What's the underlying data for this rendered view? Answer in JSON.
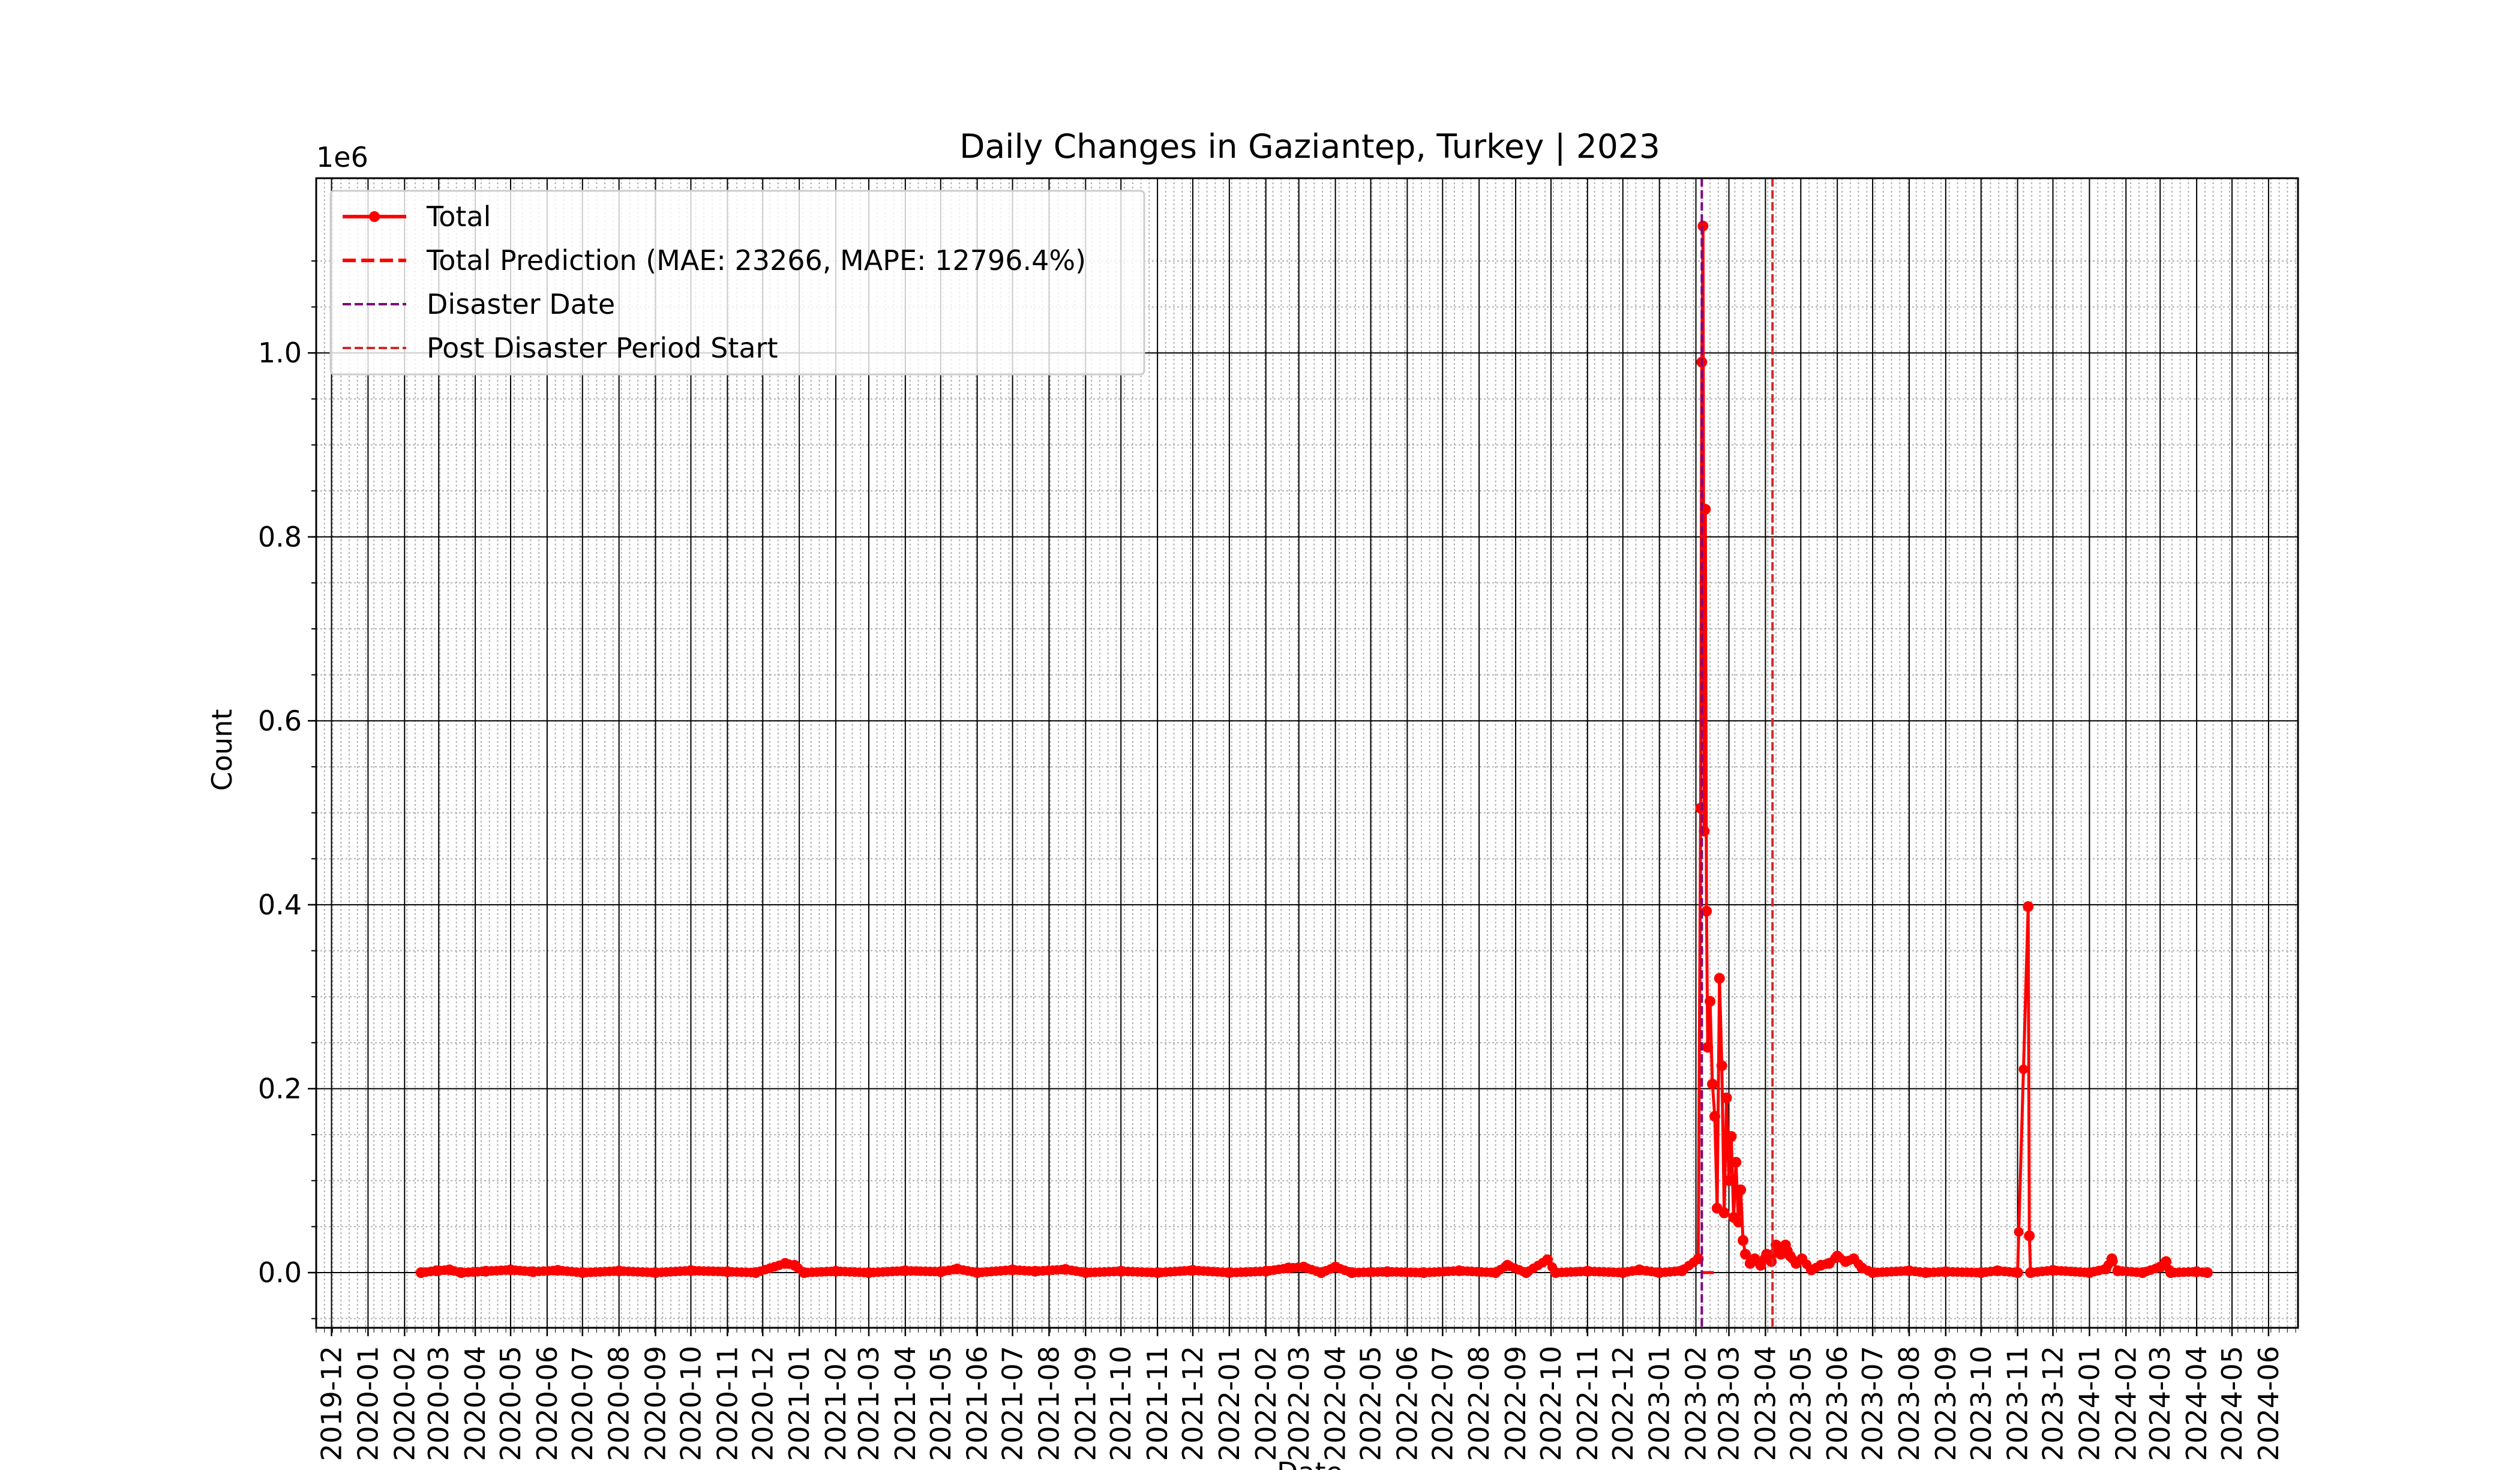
{
  "chart_data": {
    "type": "line",
    "title": "Daily Changes in Gaziantep, Turkey | 2023",
    "xlabel": "Date",
    "ylabel": "Count",
    "y_offset_label": "1e6",
    "xlim": [
      "2019-11-18",
      "2024-06-26"
    ],
    "ylim": [
      -60000,
      1190000
    ],
    "x_ticks": [
      "2019-12",
      "2020-01",
      "2020-02",
      "2020-03",
      "2020-04",
      "2020-05",
      "2020-06",
      "2020-07",
      "2020-08",
      "2020-09",
      "2020-10",
      "2020-11",
      "2020-12",
      "2021-01",
      "2021-02",
      "2021-03",
      "2021-04",
      "2021-05",
      "2021-06",
      "2021-07",
      "2021-08",
      "2021-09",
      "2021-10",
      "2021-11",
      "2021-12",
      "2022-01",
      "2022-02",
      "2022-03",
      "2022-04",
      "2022-05",
      "2022-06",
      "2022-07",
      "2022-08",
      "2022-09",
      "2022-10",
      "2022-11",
      "2022-12",
      "2023-01",
      "2023-02",
      "2023-03",
      "2023-04",
      "2023-05",
      "2023-06",
      "2023-07",
      "2023-08",
      "2023-09",
      "2023-10",
      "2023-11",
      "2023-12",
      "2024-01",
      "2024-02",
      "2024-03",
      "2024-04",
      "2024-05",
      "2024-06"
    ],
    "y_ticks": [
      0.0,
      0.2,
      0.4,
      0.6,
      0.8,
      1.0
    ],
    "grid": "major and minor",
    "legend_location": "upper left",
    "legend": [
      {
        "label": "Total",
        "color": "#ff0000",
        "style": "solid-marker"
      },
      {
        "label": "Total Prediction (MAE: 23266, MAPE: 12796.4%)",
        "color": "#ff0000",
        "style": "dashed"
      },
      {
        "label": "Disaster Date",
        "color": "#800080",
        "style": "dashed"
      },
      {
        "label": "Post Disaster Period Start",
        "color": "#d62728",
        "style": "dashed"
      }
    ],
    "vlines": [
      {
        "name": "Disaster Date",
        "date": "2023-02-06",
        "color": "#800080"
      },
      {
        "name": "Post Disaster Period Start",
        "date": "2023-04-07",
        "color": "#d62728"
      }
    ],
    "series": [
      {
        "name": "Total",
        "color": "#ff0000",
        "points": [
          [
            "2020-02-15",
            0
          ],
          [
            "2020-02-28",
            2000
          ],
          [
            "2020-03-10",
            3000
          ],
          [
            "2020-03-20",
            0
          ],
          [
            "2020-04-10",
            1500
          ],
          [
            "2020-05-01",
            3000
          ],
          [
            "2020-05-20",
            1000
          ],
          [
            "2020-06-10",
            2500
          ],
          [
            "2020-07-01",
            0
          ],
          [
            "2020-08-01",
            1800
          ],
          [
            "2020-09-01",
            0
          ],
          [
            "2020-10-01",
            2200
          ],
          [
            "2020-11-01",
            1000
          ],
          [
            "2020-11-25",
            0
          ],
          [
            "2020-12-20",
            10000
          ],
          [
            "2020-12-28",
            8000
          ],
          [
            "2021-01-05",
            0
          ],
          [
            "2021-02-01",
            1500
          ],
          [
            "2021-03-01",
            0
          ],
          [
            "2021-04-01",
            2000
          ],
          [
            "2021-05-01",
            1000
          ],
          [
            "2021-05-15",
            4000
          ],
          [
            "2021-06-01",
            0
          ],
          [
            "2021-07-01",
            3000
          ],
          [
            "2021-07-20",
            1500
          ],
          [
            "2021-08-15",
            3500
          ],
          [
            "2021-09-01",
            0
          ],
          [
            "2021-10-01",
            1500
          ],
          [
            "2021-11-01",
            0
          ],
          [
            "2021-12-01",
            2500
          ],
          [
            "2022-01-01",
            0
          ],
          [
            "2022-02-01",
            1500
          ],
          [
            "2022-02-20",
            5000
          ],
          [
            "2022-03-05",
            6000
          ],
          [
            "2022-03-20",
            0
          ],
          [
            "2022-04-01",
            6000
          ],
          [
            "2022-04-15",
            0
          ],
          [
            "2022-05-15",
            1000
          ],
          [
            "2022-06-15",
            0
          ],
          [
            "2022-07-15",
            2000
          ],
          [
            "2022-08-15",
            0
          ],
          [
            "2022-08-25",
            8000
          ],
          [
            "2022-09-10",
            0
          ],
          [
            "2022-09-28",
            14000
          ],
          [
            "2022-10-05",
            0
          ],
          [
            "2022-11-01",
            1500
          ],
          [
            "2022-12-01",
            0
          ],
          [
            "2022-12-15",
            3000
          ],
          [
            "2023-01-01",
            0
          ],
          [
            "2023-01-20",
            2000
          ],
          [
            "2023-02-03",
            15000
          ],
          [
            "2023-02-05",
            505000
          ],
          [
            "2023-02-06",
            990000
          ],
          [
            "2023-02-07",
            1138000
          ],
          [
            "2023-02-08",
            480000
          ],
          [
            "2023-02-09",
            830000
          ],
          [
            "2023-02-10",
            393000
          ],
          [
            "2023-02-11",
            245000
          ],
          [
            "2023-02-13",
            295000
          ],
          [
            "2023-02-15",
            205000
          ],
          [
            "2023-02-17",
            170000
          ],
          [
            "2023-02-19",
            70000
          ],
          [
            "2023-02-21",
            320000
          ],
          [
            "2023-02-23",
            225000
          ],
          [
            "2023-02-25",
            65000
          ],
          [
            "2023-02-27",
            190000
          ],
          [
            "2023-03-01",
            100000
          ],
          [
            "2023-03-03",
            148000
          ],
          [
            "2023-03-05",
            60000
          ],
          [
            "2023-03-07",
            120000
          ],
          [
            "2023-03-09",
            55000
          ],
          [
            "2023-03-11",
            90000
          ],
          [
            "2023-03-13",
            35000
          ],
          [
            "2023-03-15",
            20000
          ],
          [
            "2023-03-19",
            10000
          ],
          [
            "2023-03-23",
            15000
          ],
          [
            "2023-03-28",
            8000
          ],
          [
            "2023-04-02",
            20000
          ],
          [
            "2023-04-06",
            12000
          ],
          [
            "2023-04-10",
            30000
          ],
          [
            "2023-04-14",
            20000
          ],
          [
            "2023-04-18",
            30000
          ],
          [
            "2023-04-22",
            18000
          ],
          [
            "2023-04-27",
            10000
          ],
          [
            "2023-05-02",
            15000
          ],
          [
            "2023-05-10",
            3000
          ],
          [
            "2023-05-18",
            8000
          ],
          [
            "2023-05-25",
            10000
          ],
          [
            "2023-06-01",
            18000
          ],
          [
            "2023-06-08",
            12000
          ],
          [
            "2023-06-15",
            15000
          ],
          [
            "2023-06-22",
            5000
          ],
          [
            "2023-07-01",
            0
          ],
          [
            "2023-08-01",
            2000
          ],
          [
            "2023-08-15",
            0
          ],
          [
            "2023-09-01",
            1000
          ],
          [
            "2023-10-01",
            0
          ],
          [
            "2023-10-15",
            2000
          ],
          [
            "2023-11-01",
            0
          ],
          [
            "2023-11-10",
            398000
          ],
          [
            "2023-11-11",
            40000
          ],
          [
            "2023-11-12",
            0
          ],
          [
            "2023-12-01",
            2500
          ],
          [
            "2024-01-01",
            0
          ],
          [
            "2024-01-15",
            4000
          ],
          [
            "2024-01-20",
            15000
          ],
          [
            "2024-01-25",
            2000
          ],
          [
            "2024-02-15",
            0
          ],
          [
            "2024-03-01",
            6000
          ],
          [
            "2024-03-06",
            12000
          ],
          [
            "2024-03-10",
            0
          ],
          [
            "2024-04-01",
            1000
          ],
          [
            "2024-04-10",
            0
          ]
        ]
      },
      {
        "name": "Total Prediction (MAE: 23266, MAPE: 12796.4%)",
        "color": "#ff0000",
        "points": [
          [
            "2023-02-06",
            0
          ],
          [
            "2023-02-20",
            0
          ]
        ]
      }
    ]
  }
}
